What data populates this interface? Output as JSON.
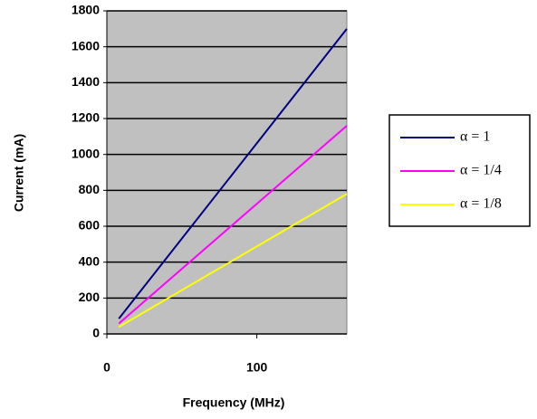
{
  "chart_data": {
    "type": "line",
    "x_label": "Frequency (MHz)",
    "y_label": "Current (mA)",
    "x": [
      8,
      160
    ],
    "series": [
      {
        "name": "α = 1",
        "color": "#000080",
        "values": [
          85,
          1700
        ]
      },
      {
        "name": "α = 1/4",
        "color": "#ff00ff",
        "values": [
          58,
          1160
        ]
      },
      {
        "name": "α = 1/8",
        "color": "#ffff00",
        "values": [
          39,
          780
        ]
      }
    ],
    "xlim": [
      0,
      160
    ],
    "xticks": [
      0,
      100
    ],
    "ylim": [
      0,
      1800
    ],
    "yticks": [
      0,
      200,
      400,
      600,
      800,
      1000,
      1200,
      1400,
      1600,
      1800
    ],
    "grid": true,
    "legend": "right",
    "plot_background": "#c0c0c0"
  }
}
